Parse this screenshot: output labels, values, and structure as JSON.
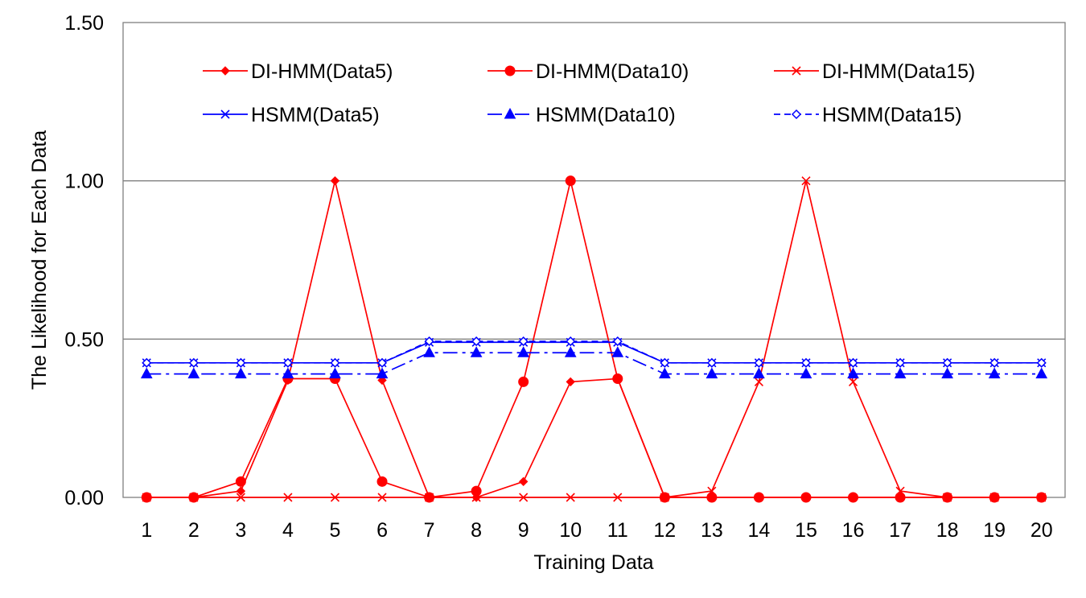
{
  "chart_data": {
    "type": "line",
    "title": "",
    "xlabel": "Training Data",
    "ylabel": "The Likelihood for Each Data",
    "ylim": [
      0,
      1.5
    ],
    "y_ticks": [
      "0.00",
      "0.50",
      "1.00",
      "1.50"
    ],
    "y_tick_values": [
      0,
      0.5,
      1.0,
      1.5
    ],
    "categories": [
      "1",
      "2",
      "3",
      "4",
      "5",
      "6",
      "7",
      "8",
      "9",
      "10",
      "11",
      "12",
      "13",
      "14",
      "15",
      "16",
      "17",
      "18",
      "19",
      "20"
    ],
    "grid": "horizontal major gridlines",
    "legend_position": "top, inside plot",
    "series": [
      {
        "name": "DI-HMM(Data5)",
        "color": "#ff0000",
        "marker": "diamond",
        "dash": "solid",
        "values": [
          0,
          0,
          0.02,
          0.37,
          1.0,
          0.37,
          0,
          0,
          0.05,
          0.365,
          0.375,
          0,
          0,
          0,
          0,
          0,
          0,
          0,
          0,
          0
        ]
      },
      {
        "name": "DI-HMM(Data10)",
        "color": "#ff0000",
        "marker": "circle",
        "dash": "solid",
        "values": [
          0,
          0,
          0.05,
          0.375,
          0.375,
          0.05,
          0,
          0.02,
          0.365,
          1.0,
          0.375,
          0,
          0,
          0,
          0,
          0,
          0,
          0,
          0,
          0
        ]
      },
      {
        "name": "DI-HMM(Data15)",
        "color": "#ff0000",
        "marker": "x",
        "dash": "solid",
        "values": [
          0,
          0,
          0,
          0,
          0,
          0,
          0,
          0,
          0,
          0,
          0,
          0,
          0.02,
          0.365,
          1.0,
          0.365,
          0.02,
          0,
          0,
          0
        ]
      },
      {
        "name": "HSMM(Data5)",
        "color": "#0000ff",
        "marker": "x",
        "dash": "solid",
        "values": [
          0.425,
          0.425,
          0.425,
          0.425,
          0.425,
          0.425,
          0.49,
          0.49,
          0.49,
          0.49,
          0.49,
          0.425,
          0.425,
          0.425,
          0.425,
          0.425,
          0.425,
          0.425,
          0.425,
          0.425
        ]
      },
      {
        "name": "HSMM(Data10)",
        "color": "#0000ff",
        "marker": "triangle",
        "dash": "dashdot",
        "values": [
          0.39,
          0.39,
          0.39,
          0.39,
          0.39,
          0.39,
          0.457,
          0.457,
          0.457,
          0.457,
          0.457,
          0.39,
          0.39,
          0.39,
          0.39,
          0.39,
          0.39,
          0.39,
          0.39,
          0.39
        ]
      },
      {
        "name": "HSMM(Data15)",
        "color": "#0000ff",
        "marker": "diamond-open",
        "dash": "dash",
        "values": [
          0.425,
          0.425,
          0.425,
          0.425,
          0.425,
          0.425,
          0.493,
          0.493,
          0.493,
          0.493,
          0.493,
          0.425,
          0.425,
          0.425,
          0.425,
          0.425,
          0.425,
          0.425,
          0.425,
          0.425
        ]
      }
    ]
  }
}
